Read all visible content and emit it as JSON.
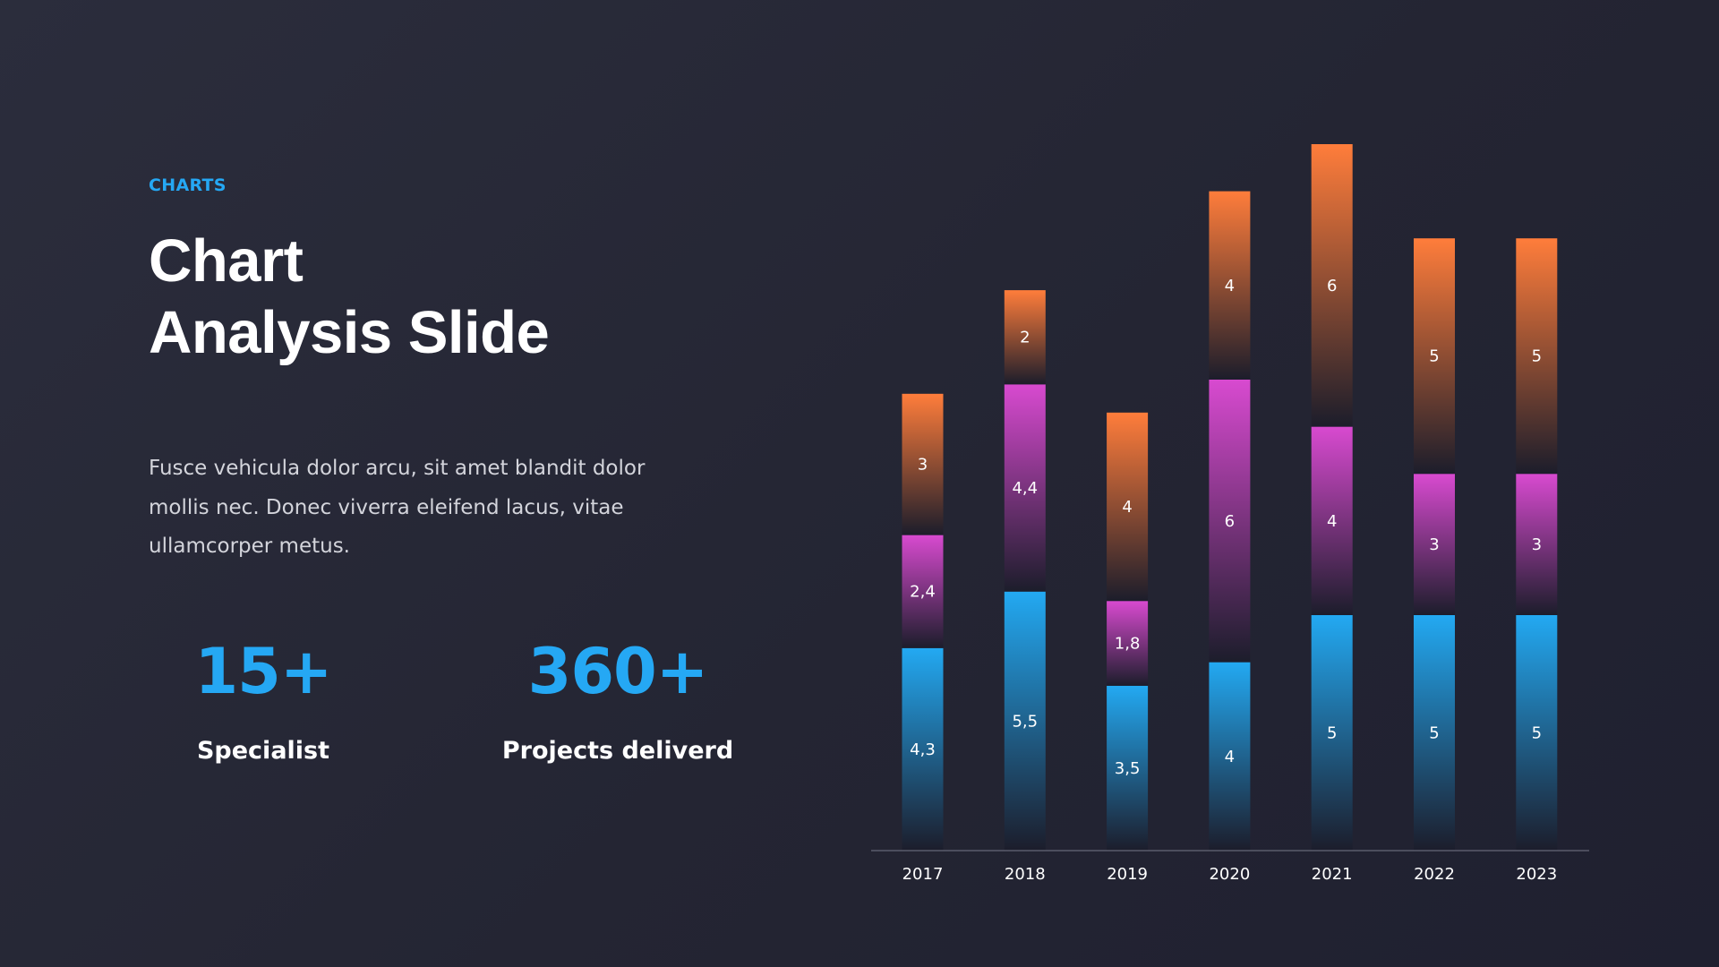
{
  "slide": {
    "eyebrow": "CHARTS",
    "title_line1": "Chart",
    "title_line2": "Analysis Slide",
    "body": "Fusce vehicula dolor arcu, sit amet blandit dolor mollis nec. Donec viverra eleifend lacus, vitae ullamcorper metus."
  },
  "stats": [
    {
      "value": "15+",
      "label": "Specialist"
    },
    {
      "value": "360+",
      "label": "Projects deliverd"
    }
  ],
  "chart_data": {
    "type": "bar",
    "stacked": true,
    "categories": [
      "2017",
      "2018",
      "2019",
      "2020",
      "2021",
      "2022",
      "2023"
    ],
    "series": [
      {
        "values": [
          4.3,
          5.5,
          3.5,
          4,
          5,
          5,
          5
        ],
        "labels": [
          "4,3",
          "5,5",
          "3,5",
          "4",
          "5",
          "5",
          "5"
        ],
        "color": "#23a9f2"
      },
      {
        "values": [
          2.4,
          4.4,
          1.8,
          6,
          4,
          3,
          3
        ],
        "labels": [
          "2,4",
          "4,4",
          "1,8",
          "6",
          "4",
          "3",
          "3"
        ],
        "color": "#d84ad0"
      },
      {
        "values": [
          3,
          2,
          4,
          4,
          6,
          5,
          5
        ],
        "labels": [
          "3",
          "2",
          "4",
          "4",
          "6",
          "5",
          "5"
        ],
        "color": "#ff7d3b"
      }
    ],
    "ylim": [
      0,
      15
    ],
    "grid": false,
    "legend": "none"
  }
}
